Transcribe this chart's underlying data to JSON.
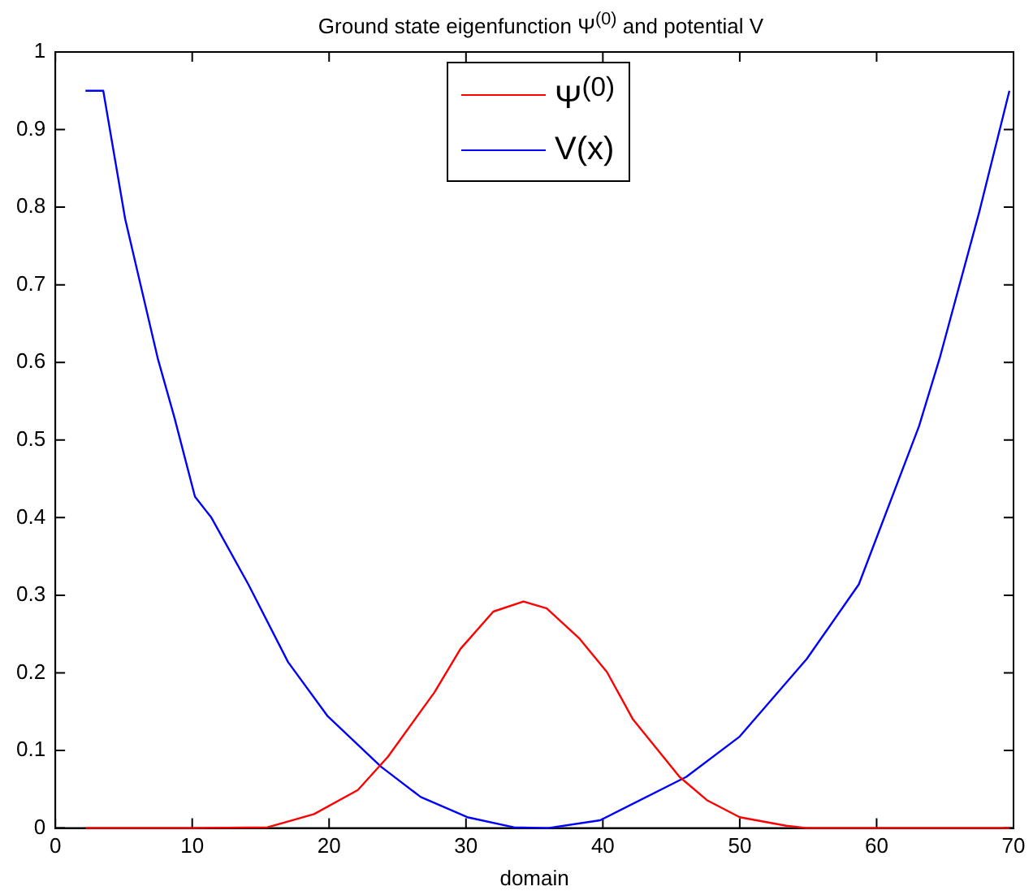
{
  "chart_data": {
    "type": "line",
    "title": "Ground state eigenfunction Ψ$^{(0)}$ and potential V",
    "xlabel": "domain",
    "xlim": [
      0,
      70
    ],
    "xticks": [
      0,
      10,
      20,
      30,
      40,
      50,
      60,
      70
    ],
    "ylim": [
      0,
      1
    ],
    "yticks": [
      0,
      0.1,
      0.2,
      0.3,
      0.4,
      0.5,
      0.6,
      0.7,
      0.8,
      0.9,
      1
    ],
    "grid": false,
    "legend": "top",
    "marker": "none",
    "line_style": "solid",
    "series": [
      {
        "name": "Ψ$^{(0)}$",
        "color": "#ff0000",
        "x": [
          2.2,
          10,
          15.5,
          18.9,
          22.1,
          24.3,
          27.7,
          29.6,
          32,
          34.2,
          35.9,
          38.3,
          40.3,
          42.2,
          45.6,
          47.6,
          50,
          53.4,
          54.9,
          60,
          69.7
        ],
        "values": [
          0,
          0,
          0.001,
          0.018,
          0.049,
          0.092,
          0.175,
          0.231,
          0.279,
          0.292,
          0.283,
          0.244,
          0.201,
          0.14,
          0.066,
          0.036,
          0.014,
          0.003,
          0,
          0,
          0
        ]
      },
      {
        "name": "V(x)",
        "color": "#0000ff",
        "x": [
          2.2,
          3.5,
          5.1,
          7.5,
          8.7,
          10.2,
          11.4,
          14.1,
          17,
          19.9,
          23.8,
          26.7,
          30.1,
          33.5,
          36,
          39.8,
          46.1,
          50,
          54.9,
          58.7,
          63.1,
          64.6,
          67.5,
          69.7
        ],
        "values": [
          0.95,
          0.95,
          0.785,
          0.604,
          0.529,
          0.427,
          0.4,
          0.314,
          0.214,
          0.144,
          0.079,
          0.04,
          0.014,
          0.001,
          0,
          0.01,
          0.066,
          0.118,
          0.218,
          0.314,
          0.518,
          0.605,
          0.794,
          0.95
        ]
      }
    ]
  }
}
